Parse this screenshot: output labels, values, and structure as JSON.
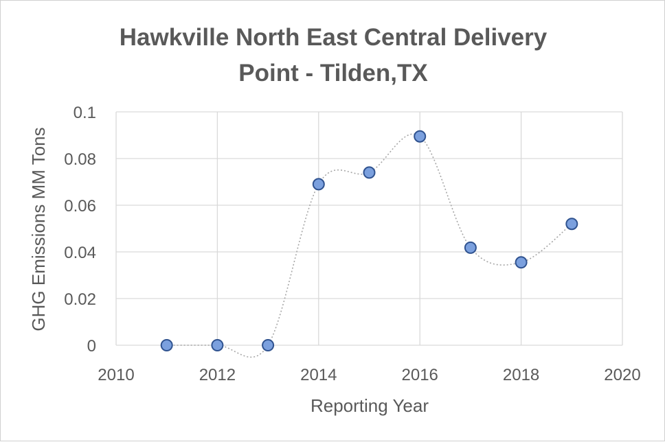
{
  "chart_data": {
    "type": "scatter",
    "title_lines": [
      "Hawkville North East Central Delivery",
      "Point - Tilden,TX"
    ],
    "xlabel": "Reporting Year",
    "ylabel": "GHG Emissions MM Tons",
    "xlim": [
      2010,
      2020
    ],
    "ylim": [
      0,
      0.1
    ],
    "x_ticks": [
      "2010",
      "2012",
      "2014",
      "2016",
      "2018",
      "2020"
    ],
    "y_ticks": [
      "0",
      "0.02",
      "0.04",
      "0.06",
      "0.08",
      "0.1"
    ],
    "grid": true,
    "smoothed_line": true,
    "series": [
      {
        "x": [
          2011,
          2012,
          2013,
          2014,
          2015,
          2016,
          2017,
          2018,
          2019
        ],
        "y": [
          0,
          0,
          0,
          0.069,
          0.074,
          0.0895,
          0.0418,
          0.0355,
          0.052
        ]
      }
    ],
    "colors": {
      "marker_fill": "#7ba0de",
      "marker_stroke": "#2f528f",
      "line": "#a6a6a6",
      "grid": "#d9d9d9",
      "text": "#595959"
    }
  }
}
